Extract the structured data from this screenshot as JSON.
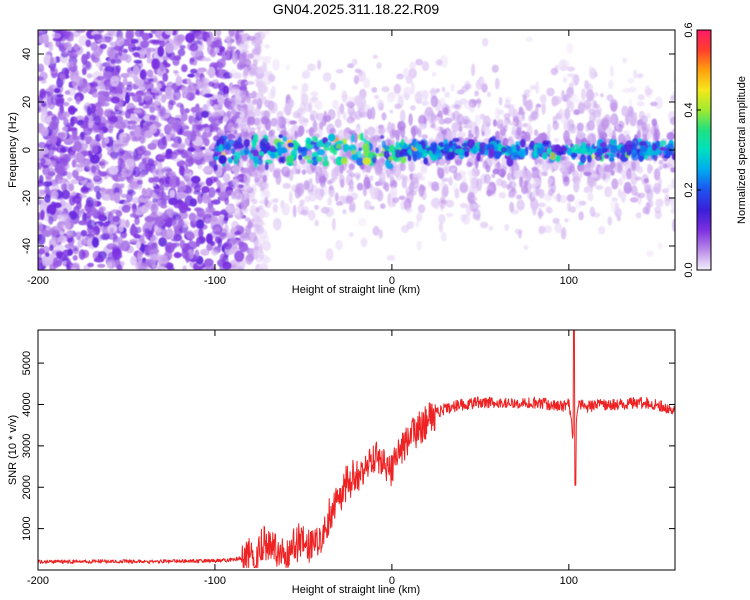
{
  "title": "GN04.2025.311.18.22.R09",
  "chart_data": [
    {
      "type": "heatmap",
      "title": "GN04.2025.311.18.22.R09",
      "xlabel": "Height of straight line (km)",
      "ylabel": "Frequency (Hz)",
      "xlim": [
        -200,
        160
      ],
      "ylim": [
        -50,
        50
      ],
      "xticks": [
        -200,
        -100,
        0,
        100
      ],
      "yticks": [
        -40,
        -20,
        0,
        20,
        40
      ],
      "colorbar": {
        "label": "Normalized spectral amplitude",
        "range": [
          0,
          0.6
        ],
        "ticks": [
          "0.0",
          "0.2",
          "0.4",
          "0.6"
        ],
        "colors": [
          "#f6eefc",
          "#b98ae8",
          "#7b2fe0",
          "#3a1fd8",
          "#1e52f0",
          "#00aaf0",
          "#00e0c0",
          "#22e080",
          "#a0ea30",
          "#f5e81a",
          "#ff9f10",
          "#ff3f2c",
          "#ff1a66"
        ]
      },
      "features": [
        {
          "description": "noise",
          "x_range": [
            -200,
            -90
          ],
          "f_range": [
            -50,
            50
          ],
          "amplitude": 0.08
        },
        {
          "description": "carrier",
          "x_range": [
            -100,
            160
          ],
          "frequency_hz": 0,
          "amplitude": 0.3,
          "peak_at_km": -22
        },
        {
          "description": "sideband speckle",
          "x_range": [
            -90,
            160
          ],
          "f_range": [
            -35,
            35
          ],
          "amplitude": 0.06
        }
      ]
    },
    {
      "type": "line",
      "xlabel": "Height of straight line (km)",
      "ylabel": "SNR (10 * v/v)",
      "xlim": [
        -200,
        160
      ],
      "ylim": [
        0,
        5800
      ],
      "xticks": [
        -200,
        -100,
        0,
        100
      ],
      "yticks": [
        1000,
        2000,
        3000,
        4000,
        5000
      ],
      "color": "#ee2222",
      "series": [
        {
          "name": "SNR",
          "x": [
            -200,
            -180,
            -160,
            -140,
            -120,
            -100,
            -90,
            -80,
            -75,
            -70,
            -65,
            -60,
            -55,
            -50,
            -45,
            -40,
            -35,
            -30,
            -25,
            -20,
            -15,
            -10,
            -5,
            0,
            5,
            10,
            15,
            20,
            25,
            30,
            35,
            40,
            50,
            60,
            70,
            80,
            90,
            95,
            100,
            103,
            105,
            110,
            120,
            130,
            140,
            150,
            160
          ],
          "values": [
            200,
            200,
            210,
            200,
            210,
            220,
            250,
            320,
            450,
            700,
            500,
            400,
            600,
            700,
            600,
            800,
            1300,
            1800,
            2100,
            2200,
            2500,
            2700,
            2650,
            2400,
            2900,
            3200,
            3400,
            3600,
            3800,
            3900,
            3950,
            4000,
            4050,
            4050,
            4000,
            4050,
            4000,
            3950,
            4000,
            3000,
            4000,
            3950,
            4000,
            4000,
            4050,
            4000,
            3850
          ]
        }
      ]
    }
  ]
}
